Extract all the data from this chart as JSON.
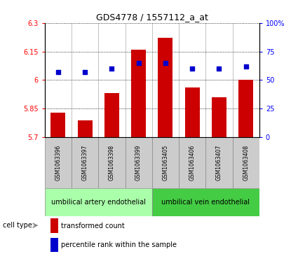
{
  "title": "GDS4778 / 1557112_a_at",
  "samples": [
    "GSM1063396",
    "GSM1063397",
    "GSM1063398",
    "GSM1063399",
    "GSM1063405",
    "GSM1063406",
    "GSM1063407",
    "GSM1063408"
  ],
  "red_values": [
    5.83,
    5.79,
    5.93,
    6.16,
    6.22,
    5.96,
    5.91,
    6.0
  ],
  "blue_values_pct": [
    57,
    57,
    60,
    65,
    65,
    60,
    60,
    62
  ],
  "ylim_left": [
    5.7,
    6.3
  ],
  "ylim_right": [
    0,
    100
  ],
  "yticks_left": [
    5.7,
    5.85,
    6.0,
    6.15,
    6.3
  ],
  "ytick_labels_left": [
    "5.7",
    "5.85",
    "6",
    "6.15",
    "6.3"
  ],
  "yticks_right": [
    0,
    25,
    50,
    75,
    100
  ],
  "ytick_labels_right": [
    "0",
    "25",
    "50",
    "75",
    "100%"
  ],
  "cell_types": [
    {
      "label": "umbilical artery endothelial",
      "start": 0,
      "end": 4,
      "color": "#aaffaa"
    },
    {
      "label": "umbilical vein endothelial",
      "start": 4,
      "end": 8,
      "color": "#44cc44"
    }
  ],
  "legend_items": [
    {
      "color": "#cc0000",
      "label": "transformed count"
    },
    {
      "color": "#0000cc",
      "label": "percentile rank within the sample"
    }
  ],
  "bar_color": "#cc0000",
  "dot_color": "#0000cc",
  "background_color": "#ffffff"
}
